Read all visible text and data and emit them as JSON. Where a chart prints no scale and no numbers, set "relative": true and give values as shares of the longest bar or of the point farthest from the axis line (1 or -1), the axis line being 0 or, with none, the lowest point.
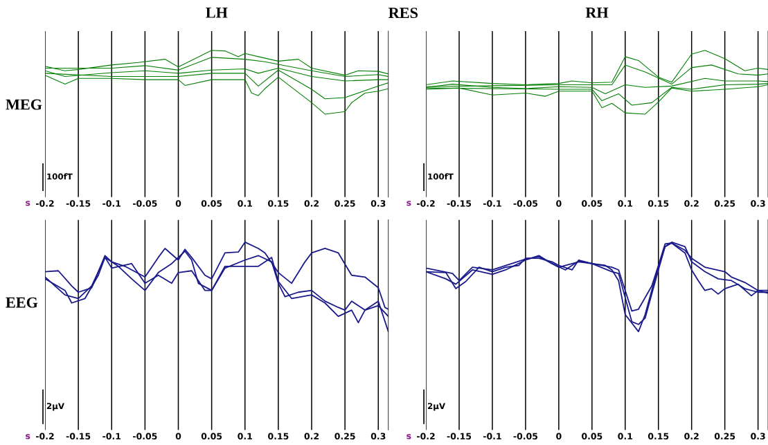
{
  "chart_data": [
    {
      "type": "line",
      "title": "LH",
      "ylabel": "MEG",
      "xlabel": "s",
      "relative": true,
      "grid": "x",
      "legend": false,
      "marker": "none",
      "line_style": "solid",
      "tick_labels": "x",
      "annotations": [
        "100fT"
      ],
      "xlim": [
        -0.2,
        0.315
      ],
      "xticks": [
        -0.2,
        -0.15,
        -0.1,
        -0.05,
        0,
        0.05,
        0.1,
        0.15,
        0.2,
        0.25,
        0.3
      ],
      "series": [
        {
          "color": "#007f00",
          "x": [
            -0.2,
            -0.17,
            -0.15,
            -0.1,
            -0.06,
            -0.02,
            0,
            0.05,
            0.07,
            0.09,
            0.1,
            0.12,
            0.15,
            0.18,
            0.2,
            0.25,
            0.27,
            0.3,
            0.315
          ],
          "values": [
            0.75,
            0.68,
            0.7,
            0.77,
            0.81,
            0.86,
            0.74,
            1.0,
            0.99,
            0.9,
            0.95,
            0.9,
            0.83,
            0.86,
            0.72,
            0.61,
            0.68,
            0.67,
            0.63
          ]
        },
        {
          "color": "#007f00",
          "x": [
            -0.2,
            -0.17,
            -0.15,
            -0.1,
            -0.05,
            0,
            0.01,
            0.05,
            0.1,
            0.11,
            0.12,
            0.13,
            0.15,
            0.2,
            0.22,
            0.25,
            0.26,
            0.28,
            0.3,
            0.315
          ],
          "values": [
            0.61,
            0.47,
            0.56,
            0.56,
            0.54,
            0.54,
            0.45,
            0.54,
            0.54,
            0.33,
            0.29,
            0.4,
            0.58,
            0.18,
            0.0,
            0.04,
            0.18,
            0.33,
            0.36,
            0.4
          ]
        },
        {
          "color": "#007f00",
          "x": [
            -0.2,
            -0.17,
            -0.1,
            -0.05,
            0,
            0.05,
            0.1,
            0.12,
            0.15,
            0.2,
            0.25,
            0.3,
            0.315
          ],
          "values": [
            0.68,
            0.59,
            0.65,
            0.68,
            0.64,
            0.69,
            0.71,
            0.64,
            0.72,
            0.59,
            0.52,
            0.54,
            0.54
          ]
        },
        {
          "color": "#007f00",
          "x": [
            -0.2,
            -0.1,
            0,
            0.05,
            0.1,
            0.12,
            0.15,
            0.2,
            0.22,
            0.25,
            0.3,
            0.315
          ],
          "values": [
            0.64,
            0.59,
            0.59,
            0.64,
            0.64,
            0.44,
            0.69,
            0.39,
            0.24,
            0.26,
            0.44,
            0.49
          ]
        },
        {
          "color": "#007f00",
          "x": [
            -0.2,
            -0.1,
            -0.05,
            0,
            0.05,
            0.1,
            0.13,
            0.15,
            0.2,
            0.25,
            0.3,
            0.315
          ],
          "values": [
            0.72,
            0.72,
            0.76,
            0.69,
            0.89,
            0.86,
            0.82,
            0.78,
            0.68,
            0.59,
            0.62,
            0.59
          ]
        }
      ]
    },
    {
      "type": "line",
      "title": "RH",
      "xlabel": "s",
      "relative": true,
      "grid": "x",
      "legend": false,
      "marker": "none",
      "line_style": "solid",
      "tick_labels": "x",
      "annotations": [
        "100fT",
        "RES"
      ],
      "xlim": [
        -0.2,
        0.315
      ],
      "xticks": [
        -0.2,
        -0.15,
        -0.1,
        -0.05,
        0,
        0.05,
        0.1,
        0.15,
        0.2,
        0.25,
        0.3
      ],
      "series": [
        {
          "color": "#007f00",
          "x": [
            -0.2,
            -0.16,
            -0.1,
            -0.05,
            0,
            0.02,
            0.05,
            0.08,
            0.1,
            0.12,
            0.15,
            0.17,
            0.2,
            0.22,
            0.25,
            0.28,
            0.3,
            0.315
          ],
          "values": [
            0.46,
            0.52,
            0.48,
            0.46,
            0.48,
            0.52,
            0.49,
            0.5,
            0.9,
            0.84,
            0.58,
            0.5,
            0.94,
            1.0,
            0.87,
            0.68,
            0.72,
            0.7
          ]
        },
        {
          "color": "#007f00",
          "x": [
            -0.2,
            -0.15,
            -0.1,
            -0.05,
            -0.02,
            0,
            0.05,
            0.065,
            0.08,
            0.1,
            0.13,
            0.15,
            0.17,
            0.2,
            0.25,
            0.3,
            0.315
          ],
          "values": [
            0.39,
            0.41,
            0.3,
            0.33,
            0.28,
            0.36,
            0.36,
            0.1,
            0.17,
            0.02,
            0.0,
            0.19,
            0.41,
            0.36,
            0.39,
            0.43,
            0.46
          ]
        },
        {
          "color": "#007f00",
          "x": [
            -0.2,
            -0.16,
            -0.1,
            -0.05,
            0,
            0.05,
            0.07,
            0.1,
            0.13,
            0.17,
            0.22,
            0.25,
            0.3,
            0.315
          ],
          "values": [
            0.42,
            0.47,
            0.42,
            0.4,
            0.43,
            0.42,
            0.32,
            0.46,
            0.42,
            0.44,
            0.56,
            0.52,
            0.52,
            0.51
          ]
        },
        {
          "color": "#007f00",
          "x": [
            -0.2,
            0,
            0.08,
            0.1,
            0.13,
            0.17,
            0.2,
            0.23,
            0.27,
            0.3,
            0.315
          ],
          "values": [
            0.43,
            0.46,
            0.46,
            0.77,
            0.66,
            0.47,
            0.73,
            0.77,
            0.63,
            0.61,
            0.63
          ]
        },
        {
          "color": "#007f00",
          "x": [
            -0.2,
            0,
            0.05,
            0.065,
            0.09,
            0.11,
            0.14,
            0.17,
            0.2,
            0.25,
            0.3,
            0.315
          ],
          "values": [
            0.41,
            0.39,
            0.39,
            0.21,
            0.32,
            0.14,
            0.18,
            0.42,
            0.39,
            0.46,
            0.47,
            0.48
          ]
        }
      ]
    },
    {
      "type": "line",
      "ylabel": "EEG",
      "xlabel": "s",
      "relative": true,
      "grid": "x",
      "legend": false,
      "marker": "none",
      "line_style": "solid",
      "tick_labels": "x",
      "annotations": [
        "2µV"
      ],
      "xlim": [
        -0.2,
        0.315
      ],
      "xticks": [
        -0.2,
        -0.15,
        -0.1,
        -0.05,
        0,
        0.05,
        0.1,
        0.15,
        0.2,
        0.25,
        0.3
      ],
      "series": [
        {
          "color": "#1a1a8c",
          "x": [
            -0.2,
            -0.18,
            -0.16,
            -0.15,
            -0.13,
            -0.11,
            -0.1,
            -0.08,
            -0.05,
            -0.03,
            -0.02,
            0,
            0.01,
            0.02,
            0.04,
            0.05,
            0.07,
            0.09,
            0.1,
            0.12,
            0.13,
            0.15,
            0.17,
            0.19,
            0.2,
            0.22,
            0.24,
            0.26,
            0.28,
            0.3,
            0.31,
            0.315
          ],
          "values": [
            0.67,
            0.68,
            0.51,
            0.44,
            0.49,
            0.85,
            0.78,
            0.73,
            0.61,
            0.83,
            0.93,
            0.8,
            0.92,
            0.83,
            0.63,
            0.59,
            0.88,
            0.89,
            1.0,
            0.93,
            0.88,
            0.66,
            0.54,
            0.78,
            0.88,
            0.93,
            0.88,
            0.63,
            0.61,
            0.49,
            0.27,
            0.25
          ]
        },
        {
          "color": "#1a1a8c",
          "x": [
            -0.2,
            -0.17,
            -0.16,
            -0.14,
            -0.12,
            -0.11,
            -0.09,
            -0.07,
            -0.05,
            -0.03,
            -0.01,
            0.01,
            0.02,
            0.03,
            0.05,
            0.07,
            0.1,
            0.12,
            0.14,
            0.15,
            0.16,
            0.18,
            0.2,
            0.22,
            0.24,
            0.25,
            0.26,
            0.28,
            0.3,
            0.315
          ],
          "values": [
            0.59,
            0.46,
            0.32,
            0.37,
            0.63,
            0.83,
            0.73,
            0.59,
            0.46,
            0.66,
            0.76,
            0.9,
            0.8,
            0.54,
            0.46,
            0.71,
            0.8,
            0.85,
            0.78,
            0.54,
            0.39,
            0.44,
            0.46,
            0.34,
            0.27,
            0.24,
            0.34,
            0.24,
            0.29,
            0.17
          ]
        },
        {
          "color": "#1a1a8c",
          "x": [
            -0.2,
            -0.17,
            -0.15,
            -0.13,
            -0.11,
            -0.1,
            -0.07,
            -0.05,
            -0.03,
            -0.01,
            0,
            0.02,
            0.04,
            0.05,
            0.07,
            0.1,
            0.12,
            0.14,
            0.15,
            0.17,
            0.2,
            0.22,
            0.24,
            0.26,
            0.27,
            0.28,
            0.3,
            0.315
          ],
          "values": [
            0.61,
            0.41,
            0.37,
            0.51,
            0.83,
            0.71,
            0.76,
            0.54,
            0.63,
            0.54,
            0.66,
            0.68,
            0.46,
            0.46,
            0.73,
            0.73,
            0.73,
            0.83,
            0.56,
            0.37,
            0.41,
            0.32,
            0.17,
            0.24,
            0.1,
            0.24,
            0.34,
            0.0
          ]
        }
      ]
    },
    {
      "type": "line",
      "xlabel": "s",
      "relative": true,
      "grid": "x",
      "legend": false,
      "marker": "none",
      "line_style": "solid",
      "tick_labels": "x",
      "annotations": [
        "2µV"
      ],
      "xlim": [
        -0.2,
        0.315
      ],
      "xticks": [
        -0.2,
        -0.15,
        -0.1,
        -0.05,
        0,
        0.05,
        0.1,
        0.15,
        0.2,
        0.25,
        0.3
      ],
      "series": [
        {
          "color": "#1a1a8c",
          "x": [
            -0.2,
            -0.17,
            -0.155,
            -0.14,
            -0.12,
            -0.1,
            -0.08,
            -0.06,
            -0.05,
            -0.03,
            -0.01,
            0,
            0.02,
            0.03,
            0.05,
            0.07,
            0.08,
            0.09,
            0.1,
            0.12,
            0.13,
            0.15,
            0.16,
            0.17,
            0.19,
            0.2,
            0.22,
            0.24,
            0.26,
            0.28,
            0.3,
            0.315
          ],
          "values": [
            0.67,
            0.66,
            0.48,
            0.56,
            0.72,
            0.67,
            0.72,
            0.74,
            0.82,
            0.82,
            0.78,
            0.74,
            0.69,
            0.8,
            0.76,
            0.74,
            0.69,
            0.57,
            0.19,
            0.0,
            0.19,
            0.73,
            0.95,
            1.0,
            0.95,
            0.78,
            0.67,
            0.59,
            0.57,
            0.48,
            0.44,
            0.44
          ]
        },
        {
          "color": "#1a1a8c",
          "x": [
            -0.2,
            -0.17,
            -0.155,
            -0.13,
            -0.1,
            -0.08,
            -0.05,
            -0.03,
            -0.01,
            0.01,
            0.03,
            0.05,
            0.08,
            0.09,
            0.1,
            0.11,
            0.12,
            0.13,
            0.15,
            0.16,
            0.17,
            0.19,
            0.2,
            0.22,
            0.25,
            0.26,
            0.28,
            0.3,
            0.315
          ],
          "values": [
            0.67,
            0.59,
            0.53,
            0.69,
            0.64,
            0.69,
            0.8,
            0.85,
            0.76,
            0.69,
            0.79,
            0.76,
            0.67,
            0.65,
            0.38,
            0.11,
            0.08,
            0.15,
            0.69,
            0.95,
            0.99,
            0.91,
            0.82,
            0.72,
            0.67,
            0.61,
            0.55,
            0.46,
            0.46
          ]
        },
        {
          "color": "#1a1a8c",
          "x": [
            -0.2,
            -0.16,
            -0.15,
            -0.13,
            -0.1,
            -0.05,
            -0.03,
            0,
            0.03,
            0.05,
            0.08,
            0.09,
            0.1,
            0.11,
            0.12,
            0.14,
            0.15,
            0.16,
            0.17,
            0.19,
            0.2,
            0.21,
            0.22,
            0.23,
            0.24,
            0.25,
            0.27,
            0.29,
            0.3,
            0.315
          ],
          "values": [
            0.71,
            0.65,
            0.57,
            0.72,
            0.69,
            0.81,
            0.84,
            0.72,
            0.78,
            0.76,
            0.72,
            0.69,
            0.46,
            0.23,
            0.25,
            0.51,
            0.74,
            0.98,
            0.99,
            0.88,
            0.69,
            0.57,
            0.46,
            0.48,
            0.42,
            0.48,
            0.53,
            0.4,
            0.46,
            0.43
          ]
        }
      ]
    }
  ]
}
